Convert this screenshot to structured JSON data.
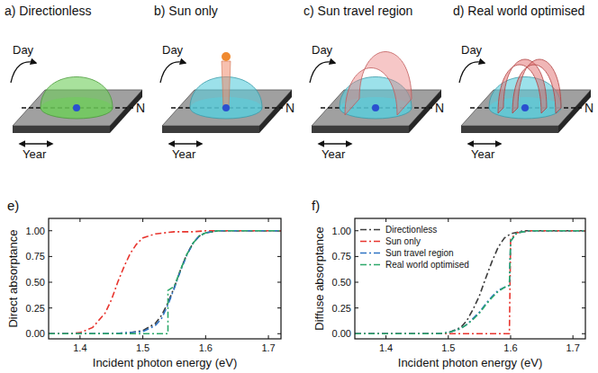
{
  "panels": [
    {
      "title": "a) Directionless",
      "day": "Day",
      "year": "Year",
      "north": "N"
    },
    {
      "title": "b) Sun only",
      "day": "Day",
      "year": "Year",
      "north": "N"
    },
    {
      "title": "c) Sun travel region",
      "day": "Day",
      "year": "Year",
      "north": "N"
    },
    {
      "title": "d) Real world optimised",
      "day": "Day",
      "year": "Year",
      "north": "N"
    }
  ],
  "chart_data": [
    {
      "type": "line",
      "title": "e)",
      "x_label": "Incident photon energy (eV)",
      "y_label": "Direct absorptance",
      "xlim": [
        1.35,
        1.72
      ],
      "ylim": [
        -0.05,
        1.12
      ],
      "xticks": [
        1.4,
        1.5,
        1.6,
        1.7
      ],
      "yticks": [
        {
          "value": 0,
          "label": "0.00"
        },
        {
          "value": 0.25,
          "label": "0.25"
        },
        {
          "value": 0.5,
          "label": "0.50"
        },
        {
          "value": 0.75,
          "label": "0.75"
        },
        {
          "value": 1,
          "label": "1.00"
        }
      ],
      "grid": false,
      "series": [
        {
          "color": "#3c3c3c",
          "line_style": "dashdot",
          "x": [
            1.35,
            1.45,
            1.48,
            1.5,
            1.52,
            1.53,
            1.54,
            1.55,
            1.56,
            1.57,
            1.58,
            1.59,
            1.6,
            1.62,
            1.65,
            1.72
          ],
          "values": [
            0,
            0,
            0.01,
            0.03,
            0.1,
            0.18,
            0.3,
            0.45,
            0.62,
            0.77,
            0.88,
            0.95,
            0.98,
            1,
            1,
            1
          ]
        },
        {
          "color": "#e8352e",
          "line_style": "dashdot",
          "x": [
            1.35,
            1.38,
            1.4,
            1.42,
            1.44,
            1.45,
            1.46,
            1.47,
            1.48,
            1.49,
            1.5,
            1.52,
            1.55,
            1.58,
            1.6,
            1.72
          ],
          "values": [
            0,
            0,
            0.01,
            0.06,
            0.2,
            0.33,
            0.5,
            0.65,
            0.78,
            0.87,
            0.93,
            0.97,
            0.99,
            0.99,
            1,
            1
          ]
        },
        {
          "color": "#2f73c4",
          "line_style": "dashdot",
          "x": [
            1.35,
            1.45,
            1.5,
            1.52,
            1.53,
            1.54,
            1.55,
            1.56,
            1.57,
            1.58,
            1.59,
            1.6,
            1.62,
            1.65,
            1.72
          ],
          "values": [
            0,
            0,
            0.02,
            0.08,
            0.15,
            0.28,
            0.44,
            0.61,
            0.76,
            0.88,
            0.95,
            0.98,
            1,
            1,
            1
          ]
        },
        {
          "color": "#2ca86a",
          "line_style": "dashdot",
          "x": [
            1.35,
            1.54,
            1.54,
            1.55,
            1.56,
            1.57,
            1.58,
            1.59,
            1.6,
            1.62,
            1.65,
            1.72
          ],
          "values": [
            0,
            0,
            0.42,
            0.46,
            0.62,
            0.77,
            0.88,
            0.95,
            0.98,
            1,
            1,
            1
          ]
        }
      ]
    },
    {
      "type": "line",
      "title": "f)",
      "x_label": "Incident photon energy (eV)",
      "y_label": "Diffuse absorptance",
      "xlim": [
        1.35,
        1.72
      ],
      "ylim": [
        -0.05,
        1.12
      ],
      "xticks": [
        1.4,
        1.5,
        1.6,
        1.7
      ],
      "yticks": [
        {
          "value": 0,
          "label": "0.00"
        },
        {
          "value": 0.25,
          "label": "0.25"
        },
        {
          "value": 0.5,
          "label": "0.50"
        },
        {
          "value": 0.75,
          "label": "0.75"
        },
        {
          "value": 1,
          "label": "1.00"
        }
      ],
      "grid": false,
      "legend": "upper left",
      "series": [
        {
          "name": "Directionless",
          "color": "#3c3c3c",
          "line_style": "dashdot",
          "x": [
            1.35,
            1.48,
            1.5,
            1.52,
            1.53,
            1.54,
            1.55,
            1.56,
            1.57,
            1.58,
            1.59,
            1.6,
            1.62,
            1.65,
            1.72
          ],
          "values": [
            0,
            0,
            0.01,
            0.06,
            0.13,
            0.24,
            0.37,
            0.54,
            0.7,
            0.84,
            0.93,
            0.97,
            1,
            1,
            1
          ]
        },
        {
          "name": "Sun only",
          "color": "#e8352e",
          "line_style": "dashdot",
          "x": [
            1.35,
            1.598,
            1.6,
            1.61,
            1.63,
            1.72
          ],
          "values": [
            0,
            0,
            0.92,
            0.98,
            1,
            1
          ]
        },
        {
          "name": "Sun travel region",
          "color": "#2f73c4",
          "line_style": "dashdot",
          "x": [
            1.35,
            1.48,
            1.5,
            1.52,
            1.53,
            1.54,
            1.55,
            1.56,
            1.57,
            1.58,
            1.59,
            1.598,
            1.6,
            1.61,
            1.63,
            1.72
          ],
          "values": [
            0,
            0,
            0.01,
            0.05,
            0.09,
            0.15,
            0.21,
            0.29,
            0.36,
            0.42,
            0.45,
            0.47,
            0.9,
            0.98,
            1,
            1
          ]
        },
        {
          "name": "Real world optimised",
          "color": "#2ca86a",
          "line_style": "dashdot",
          "x": [
            1.35,
            1.48,
            1.5,
            1.52,
            1.53,
            1.54,
            1.55,
            1.56,
            1.57,
            1.58,
            1.59,
            1.598,
            1.6,
            1.61,
            1.63,
            1.72
          ],
          "values": [
            0,
            0,
            0.01,
            0.05,
            0.09,
            0.14,
            0.2,
            0.28,
            0.35,
            0.41,
            0.45,
            0.47,
            0.9,
            0.98,
            1,
            1
          ]
        }
      ]
    }
  ]
}
